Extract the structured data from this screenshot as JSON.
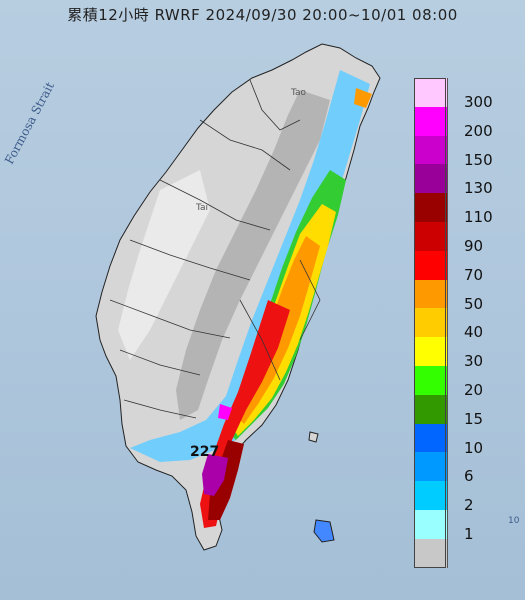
{
  "title": "累積12小時 RWRF 2024/09/30 20:00~10/01 08:00",
  "strait_label": "Formosa Strait",
  "max_value_label": "227",
  "place_labels": [
    "Tao",
    "Tai"
  ],
  "edge_number": "10",
  "legend": [
    {
      "label": "300",
      "color": "#ffc8ff"
    },
    {
      "label": "200",
      "color": "#ff00ff"
    },
    {
      "label": "150",
      "color": "#cc00cc"
    },
    {
      "label": "130",
      "color": "#990099"
    },
    {
      "label": "110",
      "color": "#990000"
    },
    {
      "label": "90",
      "color": "#cc0000"
    },
    {
      "label": "70",
      "color": "#ff0000"
    },
    {
      "label": "50",
      "color": "#ff9900"
    },
    {
      "label": "40",
      "color": "#ffcc00"
    },
    {
      "label": "30",
      "color": "#ffff00"
    },
    {
      "label": "20",
      "color": "#33ff00"
    },
    {
      "label": "15",
      "color": "#339900"
    },
    {
      "label": "10",
      "color": "#0066ff"
    },
    {
      "label": "6",
      "color": "#0099ff"
    },
    {
      "label": "2",
      "color": "#00ccff"
    },
    {
      "label": "1",
      "color": "#99ffff"
    },
    {
      "label": "",
      "color": "#c8c8c8"
    }
  ]
}
